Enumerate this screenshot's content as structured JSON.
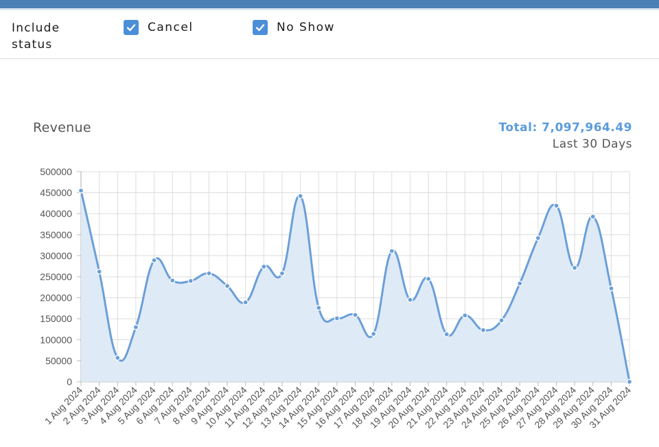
{
  "filters": {
    "label": "Include status",
    "options": [
      {
        "label": "Cancel",
        "checked": true
      },
      {
        "label": "No Show",
        "checked": true
      }
    ]
  },
  "header": {
    "title": "Revenue",
    "total": "Total: 7,097,964.49",
    "range": "Last 30 Days"
  },
  "colors": {
    "accent": "#5b9bdc",
    "line": "#6a9fd8",
    "fill": "#dfeaf7",
    "topbar": "#4a7fb5"
  },
  "chart_data": {
    "type": "area",
    "title": "Revenue",
    "xlabel": "",
    "ylabel": "",
    "ylim": [
      0,
      500000
    ],
    "ytick_step": 50000,
    "grid": true,
    "categories": [
      "1 Aug 2024",
      "2 Aug 2024",
      "3 Aug 2024",
      "4 Aug 2024",
      "5 Aug 2024",
      "6 Aug 2024",
      "7 Aug 2024",
      "8 Aug 2024",
      "9 Aug 2024",
      "10 Aug 2024",
      "11 Aug 2024",
      "12 Aug 2024",
      "13 Aug 2024",
      "14 Aug 2024",
      "15 Aug 2024",
      "16 Aug 2024",
      "17 Aug 2024",
      "18 Aug 2024",
      "19 Aug 2024",
      "20 Aug 2024",
      "21 Aug 2024",
      "22 Aug 2024",
      "23 Aug 2024",
      "24 Aug 2024",
      "25 Aug 2024",
      "26 Aug 2024",
      "27 Aug 2024",
      "28 Aug 2024",
      "29 Aug 2024",
      "30 Aug 2024",
      "31 Aug 2024"
    ],
    "values": [
      455000,
      262000,
      57000,
      130000,
      289000,
      241000,
      240000,
      258000,
      228000,
      189000,
      274000,
      258000,
      442000,
      176000,
      151000,
      159000,
      114000,
      311000,
      195000,
      245000,
      113000,
      158000,
      123000,
      146000,
      234000,
      342000,
      419000,
      271000,
      393000,
      222000,
      0
    ]
  }
}
